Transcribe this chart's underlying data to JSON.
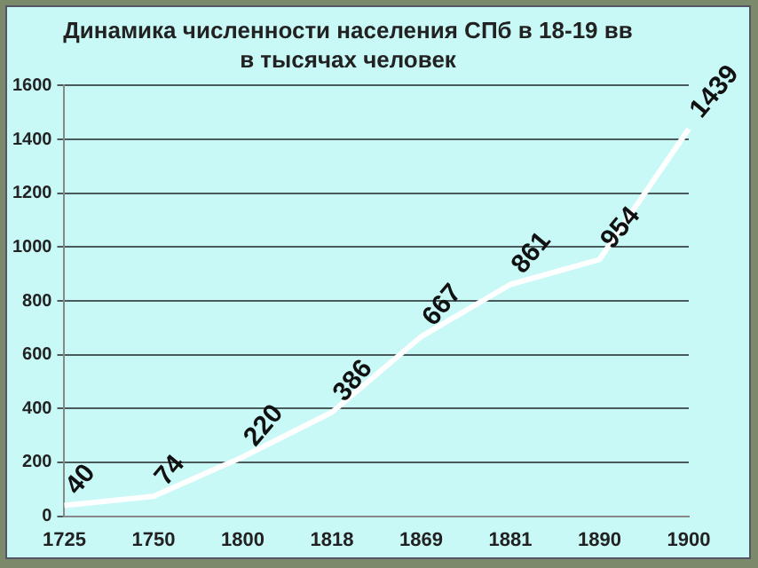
{
  "chart_data": {
    "type": "line",
    "title": "Динамика численности населения СПб в 18-19 вв",
    "subtitle": "в тысячах человек",
    "categories": [
      "1725",
      "1750",
      "1800",
      "1818",
      "1869",
      "1881",
      "1890",
      "1900"
    ],
    "series": [
      {
        "color": "#ffffff",
        "values": [
          40,
          74,
          220,
          386,
          667,
          861,
          954,
          1439
        ]
      }
    ],
    "ylim": [
      0,
      1600
    ],
    "yticks": [
      0,
      200,
      400,
      600,
      800,
      1000,
      1200,
      1400,
      1600
    ],
    "grid": "y",
    "data_labels": true,
    "marker": "none",
    "line_style": "solid",
    "legend": false
  }
}
